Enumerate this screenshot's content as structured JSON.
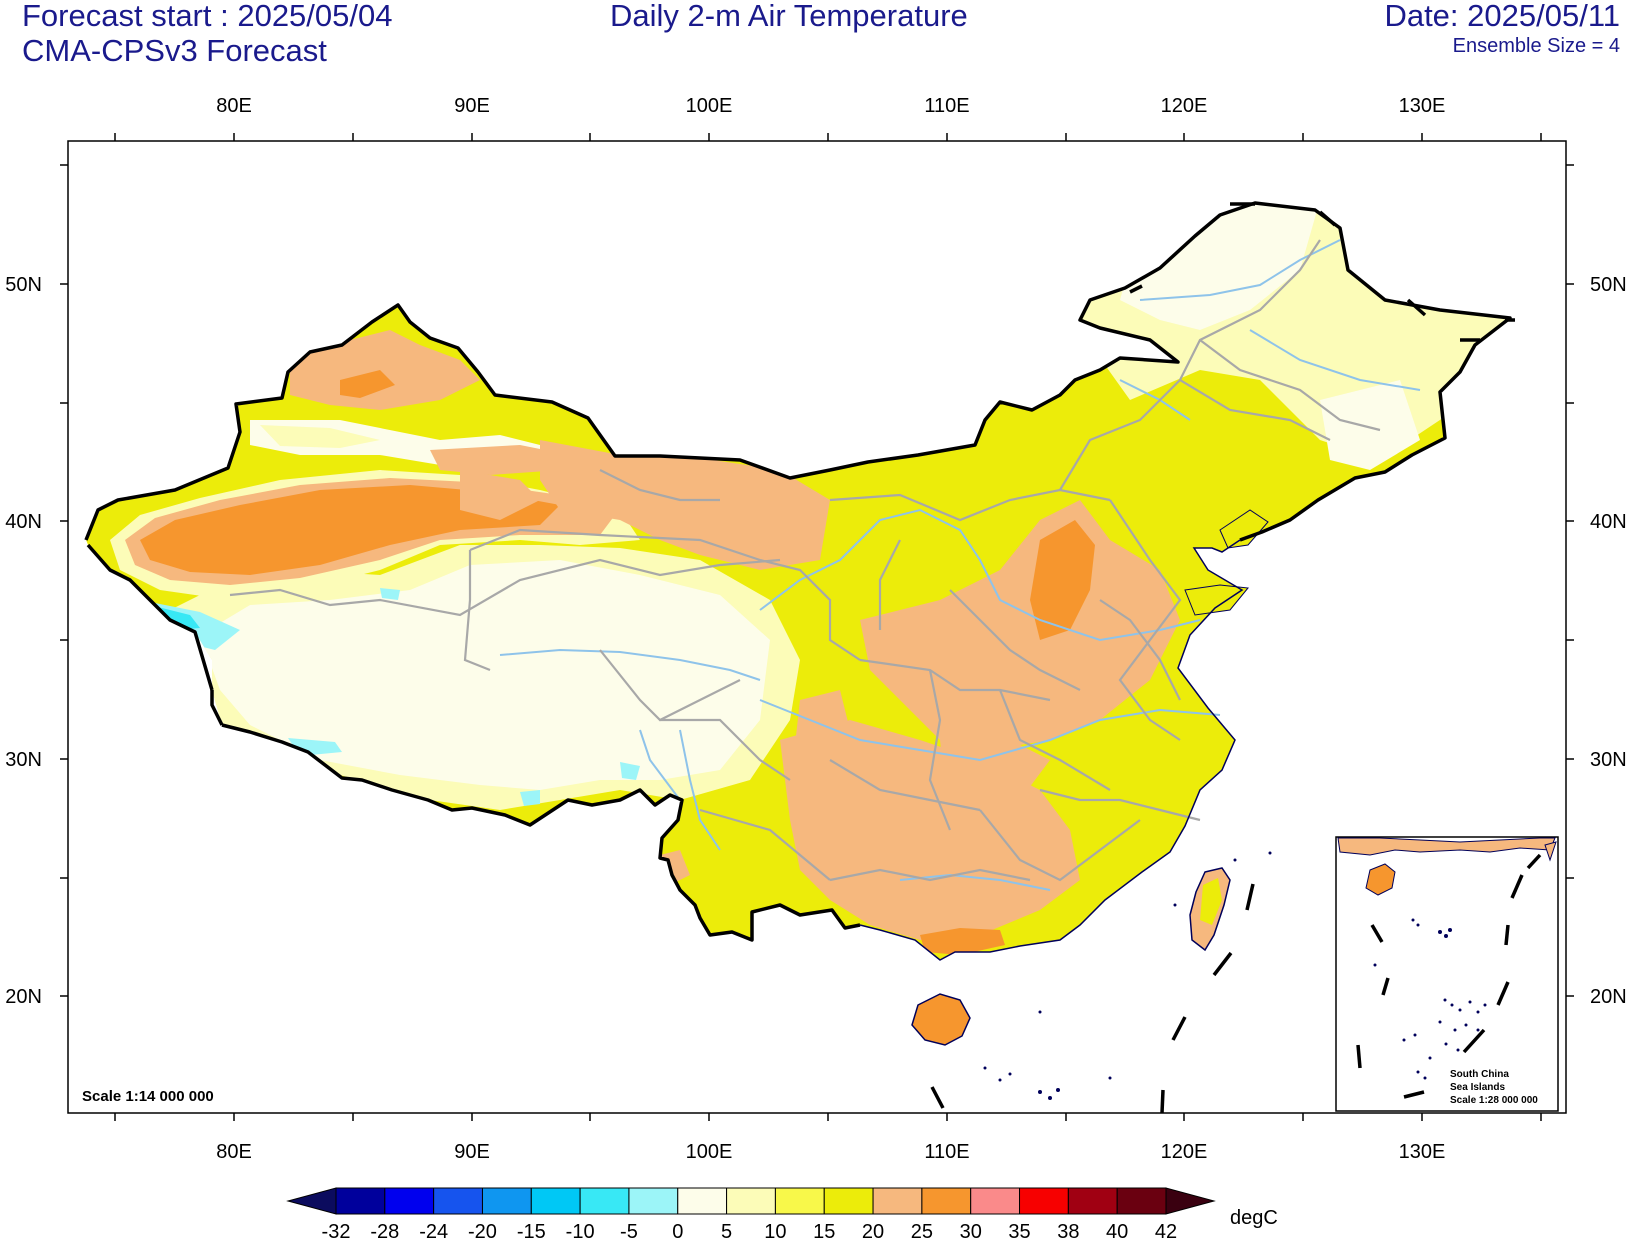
{
  "header": {
    "forecast_start": "Forecast start : 2025/05/04",
    "model": "CMA-CPSv3 Forecast",
    "title": "Daily 2-m Air Temperature",
    "date": "Date: 2025/05/11",
    "ensemble": "Ensemble Size = 4"
  },
  "axes": {
    "lon_labels": [
      "80E",
      "90E",
      "100E",
      "110E",
      "120E",
      "130E"
    ],
    "lat_labels": [
      "50N",
      "40N",
      "30N",
      "20N"
    ]
  },
  "map": {
    "scale_label": "Scale 1:14 000 000",
    "inset_labels": [
      "South China",
      "Sea Islands",
      "Scale 1:28 000 000"
    ]
  },
  "colorbar": {
    "unit": "degC",
    "levels": [
      "-32",
      "-28",
      "-24",
      "-20",
      "-15",
      "-10",
      "-5",
      "0",
      "5",
      "10",
      "15",
      "20",
      "25",
      "30",
      "35",
      "38",
      "40",
      "42"
    ],
    "colors": [
      "#0b0b5e",
      "#00009c",
      "#0000ee",
      "#1654ee",
      "#0f96f0",
      "#00c8f5",
      "#38e8f5",
      "#9cf5f8",
      "#fdfdea",
      "#fcfcb8",
      "#f8f84a",
      "#ecec0a",
      "#f6b87e",
      "#f6962e",
      "#fa8a8a",
      "#f70000",
      "#a00012",
      "#6a0010",
      "#3a0010"
    ]
  }
}
